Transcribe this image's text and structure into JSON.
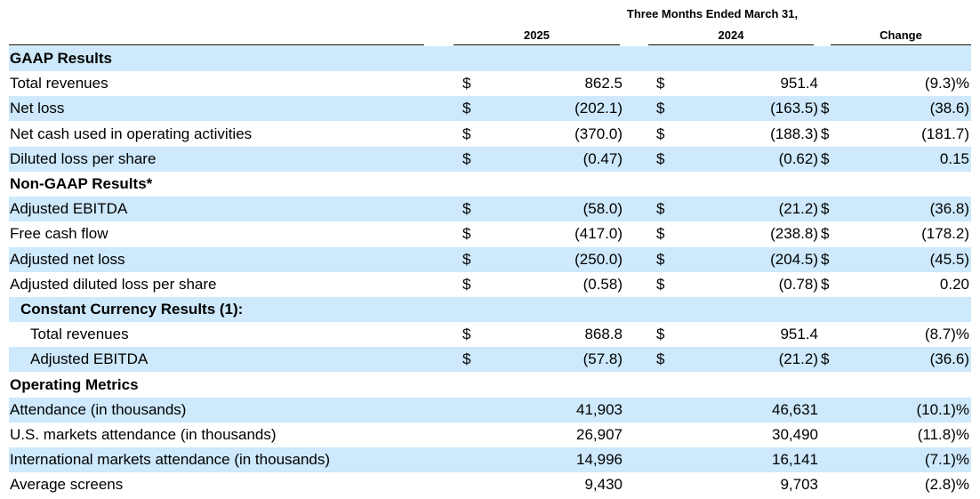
{
  "header": {
    "period": "Three Months Ended March 31,",
    "col_2025": "2025",
    "col_2024": "2024",
    "col_change": "Change"
  },
  "rows": [
    {
      "label": "GAAP Results",
      "style": "bold",
      "shaded": true,
      "d1": "",
      "v1": "",
      "d2": "",
      "v2": "",
      "d3": "",
      "v3": ""
    },
    {
      "label": "Total revenues",
      "style": "",
      "shaded": false,
      "d1": "$",
      "v1": "862.5",
      "d2": "$",
      "v2": "951.4",
      "d3": "",
      "v3": "(9.3)%"
    },
    {
      "label": "Net loss",
      "style": "",
      "shaded": true,
      "d1": "$",
      "v1": "(202.1)",
      "d2": "$",
      "v2": "(163.5)",
      "d3": "$",
      "v3": "(38.6)"
    },
    {
      "label": "Net cash used in operating activities",
      "style": "",
      "shaded": false,
      "d1": "$",
      "v1": "(370.0)",
      "d2": "$",
      "v2": "(188.3)",
      "d3": "$",
      "v3": "(181.7)"
    },
    {
      "label": "Diluted loss per share",
      "style": "",
      "shaded": true,
      "d1": "$",
      "v1": "(0.47)",
      "d2": "$",
      "v2": "(0.62)",
      "d3": "$",
      "v3": "0.15"
    },
    {
      "label": "Non-GAAP Results*",
      "style": "bold",
      "shaded": false,
      "d1": "",
      "v1": "",
      "d2": "",
      "v2": "",
      "d3": "",
      "v3": ""
    },
    {
      "label": "Adjusted EBITDA",
      "style": "",
      "shaded": true,
      "d1": "$",
      "v1": "(58.0)",
      "d2": "$",
      "v2": "(21.2)",
      "d3": "$",
      "v3": "(36.8)"
    },
    {
      "label": "Free cash flow",
      "style": "",
      "shaded": false,
      "d1": "$",
      "v1": "(417.0)",
      "d2": "$",
      "v2": "(238.8)",
      "d3": "$",
      "v3": "(178.2)"
    },
    {
      "label": "Adjusted net loss",
      "style": "",
      "shaded": true,
      "d1": "$",
      "v1": "(250.0)",
      "d2": "$",
      "v2": "(204.5)",
      "d3": "$",
      "v3": "(45.5)"
    },
    {
      "label": "Adjusted diluted loss per share",
      "style": "",
      "shaded": false,
      "d1": "$",
      "v1": "(0.58)",
      "d2": "$",
      "v2": "(0.78)",
      "d3": "$",
      "v3": "0.20"
    },
    {
      "label": "Constant Currency Results (1):",
      "style": "bold ind1",
      "shaded": true,
      "d1": "",
      "v1": "",
      "d2": "",
      "v2": "",
      "d3": "",
      "v3": ""
    },
    {
      "label": "Total revenues",
      "style": "ind2",
      "shaded": false,
      "d1": "$",
      "v1": "868.8",
      "d2": "$",
      "v2": "951.4",
      "d3": "",
      "v3": "(8.7)%"
    },
    {
      "label": "Adjusted EBITDA",
      "style": "ind2",
      "shaded": true,
      "d1": "$",
      "v1": "(57.8)",
      "d2": "$",
      "v2": "(21.2)",
      "d3": "$",
      "v3": "(36.6)"
    },
    {
      "label": "Operating Metrics",
      "style": "bold",
      "shaded": false,
      "d1": "",
      "v1": "",
      "d2": "",
      "v2": "",
      "d3": "",
      "v3": ""
    },
    {
      "label": "Attendance (in thousands)",
      "style": "",
      "shaded": true,
      "d1": "",
      "v1": "41,903",
      "d2": "",
      "v2": "46,631",
      "d3": "",
      "v3": "(10.1)%"
    },
    {
      "label": "U.S. markets attendance (in thousands)",
      "style": "",
      "shaded": false,
      "d1": "",
      "v1": "26,907",
      "d2": "",
      "v2": "30,490",
      "d3": "",
      "v3": "(11.8)%"
    },
    {
      "label": "International markets attendance (in thousands)",
      "style": "",
      "shaded": true,
      "d1": "",
      "v1": "14,996",
      "d2": "",
      "v2": "16,141",
      "d3": "",
      "v3": "(7.1)%"
    },
    {
      "label": "Average screens",
      "style": "",
      "shaded": false,
      "d1": "",
      "v1": "9,430",
      "d2": "",
      "v2": "9,703",
      "d3": "",
      "v3": "(2.8)%"
    }
  ]
}
